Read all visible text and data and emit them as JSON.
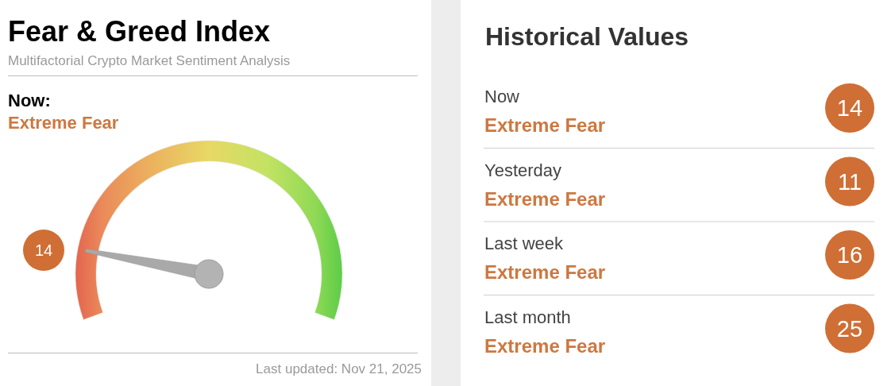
{
  "chart_data": [
    {
      "type": "other",
      "title": "Fear & Greed Index",
      "subtitle": "Multifactorial Crypto Market Sentiment Analysis",
      "values": [
        14
      ],
      "data_labels": true,
      "annotations": [
        "Now:",
        "Extreme Fear",
        "Last updated: Nov 21, 2025"
      ]
    },
    {
      "type": "other",
      "title": "Historical Values",
      "categories": [
        "Now",
        "Yesterday",
        "Last week",
        "Last month"
      ],
      "values": [
        14,
        11,
        16,
        25
      ],
      "data_labels": true,
      "annotations": [
        "Extreme Fear",
        "Extreme Fear",
        "Extreme Fear",
        "Extreme Fear"
      ]
    }
  ]
}
